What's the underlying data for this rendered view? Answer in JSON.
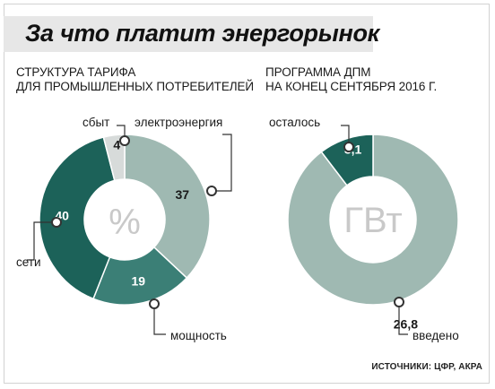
{
  "title": "За что платит энергорынок",
  "source": "ИСТОЧНИКИ: ЦФР, АКРА",
  "colors": {
    "dark_teal": "#1c6259",
    "mid_teal": "#3b7f76",
    "light_sage": "#9fb9b2",
    "pale_gray": "#d7dbda"
  },
  "chart_data": [
    {
      "type": "pie",
      "title": "СТРУКТУРА ТАРИФА\nДЛЯ ПРОМЫШЛЕННЫХ ПОТРЕБИТЕЛЕЙ",
      "title_lines": [
        "СТРУКТУРА ТАРИФА",
        "ДЛЯ ПРОМЫШЛЕННЫХ ПОТРЕБИТЕЛЕЙ"
      ],
      "center_label": "%",
      "slices": [
        {
          "label": "электроэнергия",
          "value": 37,
          "color": "#9fb9b2"
        },
        {
          "label": "мощность",
          "value": 19,
          "color": "#3b7f76"
        },
        {
          "label": "сети",
          "value": 40,
          "color": "#1c6259"
        },
        {
          "label": "сбыт",
          "value": 4,
          "color": "#d7dbda"
        }
      ]
    },
    {
      "type": "pie",
      "title": "ПРОГРАММА ДПМ\nНА КОНЕЦ СЕНТЯБРЯ 2016 Г.",
      "title_lines": [
        "ПРОГРАММА ДПМ",
        "НА КОНЕЦ СЕНТЯБРЯ 2016 Г."
      ],
      "center_label": "ГВт",
      "slices": [
        {
          "label": "введено",
          "value": 26.8,
          "display": "26,8",
          "color": "#9fb9b2"
        },
        {
          "label": "осталось",
          "value": 3.1,
          "display": "3,1",
          "color": "#1c6259"
        }
      ]
    }
  ]
}
